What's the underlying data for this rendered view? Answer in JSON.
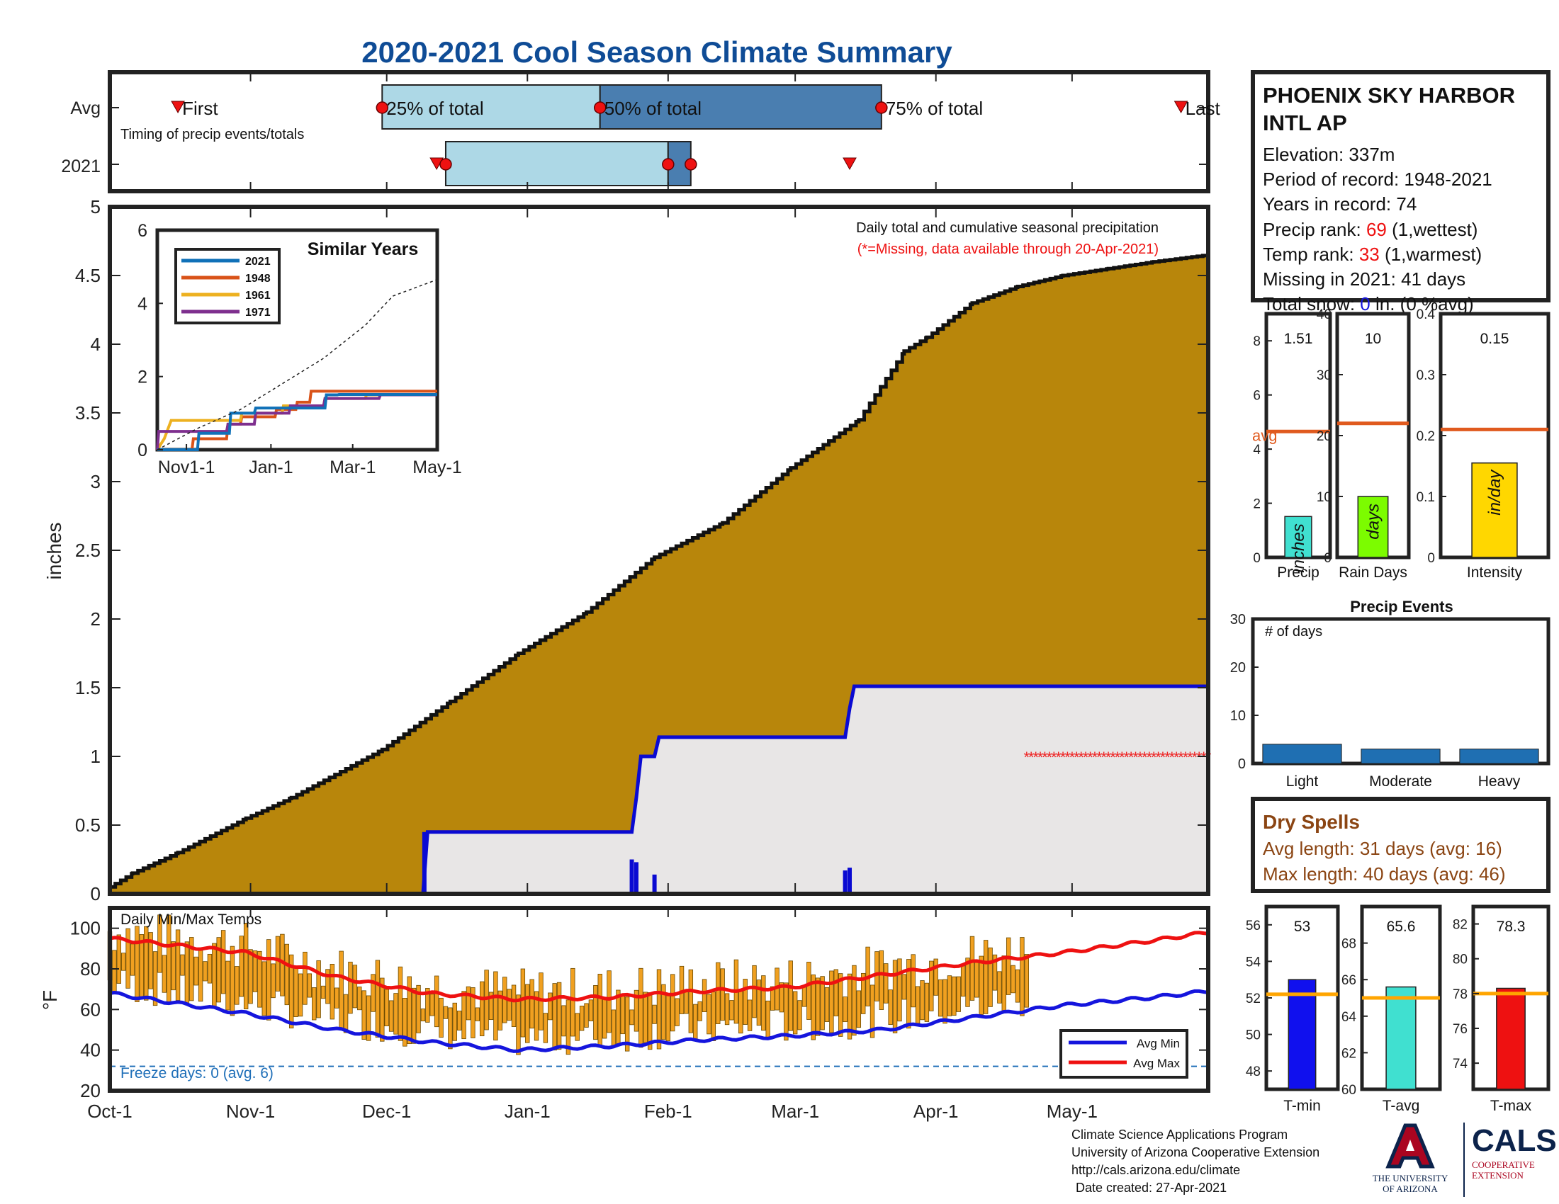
{
  "title": "2020-2021 Cool Season Climate Summary",
  "colors": {
    "title": "#0f4c96",
    "precip_fill": "#b8860b",
    "normal_fill": "#e8e6e6",
    "normal_line": "#0a0ad2",
    "avg_line": "#e05a1e",
    "temp_bar": "#f0a020",
    "avg_max": "#ee1111",
    "avg_min": "#1515dd",
    "freeze": "#1f6fb8",
    "missing": "#ee2222",
    "light_blue": "#add8e6",
    "steel_blue": "#4a7eb0",
    "dry_brown": "#8b4513",
    "event_bar": "#1f6fb2"
  },
  "station": {
    "name_line1": "PHOENIX SKY HARBOR",
    "name_line2": "INTL AP",
    "elevation": "Elevation: 337m",
    "period": "Period of record: 1948-2021",
    "years": "Years in record: 74",
    "precip_rank_label": "Precip rank: ",
    "precip_rank_value": "69",
    "precip_rank_suffix": " (1,wettest)",
    "temp_rank_label": "Temp rank: ",
    "temp_rank_value": "33",
    "temp_rank_suffix": " (1,warmest)",
    "missing": "Missing in 2021: 41 days",
    "snow_label": "Total snow: ",
    "snow_value": "0",
    "snow_suffix": " in. (0 %avg)"
  },
  "timing_panel": {
    "row_avg": "Avg",
    "row_year": "2021",
    "first_label": "First",
    "last_label": "Last",
    "p25_label": "25% of total",
    "p50_label": "50% of total",
    "p75_label": "75% of total",
    "subtitle": "Timing of precip events/totals",
    "avg_first": 15,
    "avg_p25": 60,
    "avg_p50": 108,
    "avg_p75": 170,
    "avg_last": 236,
    "yr_first": 73,
    "yr_p25": 74,
    "yr_p50": 123,
    "yr_p75": 128,
    "yr_last": 163
  },
  "main_panel": {
    "ylabel": "inches",
    "note1": "Daily total and cumulative seasonal precipitation",
    "note2": "(*=Missing, data available through 20-Apr-2021)",
    "yticks": [
      "0",
      "0.5",
      "1",
      "1.5",
      "2",
      "2.5",
      "3",
      "3.5",
      "4",
      "4.5",
      "5"
    ],
    "xticks": [
      "Oct-1",
      "Nov-1",
      "Dec-1",
      "Jan-1",
      "Feb-1",
      "Mar-1",
      "Apr-1",
      "May-1"
    ]
  },
  "inset": {
    "title": "Similar Years",
    "legend": [
      "2021",
      "1948",
      "1961",
      "1971"
    ],
    "legend_colors": [
      "#1071b8",
      "#d95319",
      "#edb120",
      "#7e2f8e"
    ],
    "yticks": [
      "0",
      "2",
      "4",
      "6"
    ],
    "xticks": [
      "Nov1-1",
      "Jan-1",
      "Mar-1",
      "May-1"
    ]
  },
  "temp_panel": {
    "title": "Daily Min/Max Temps",
    "ylabel": "°F",
    "yticks": [
      "20",
      "40",
      "60",
      "80",
      "100"
    ],
    "freeze_text": "Freeze days: 0 (avg. 6)",
    "legend_min": "Avg Min",
    "legend_max": "Avg Max"
  },
  "totals_panels": [
    {
      "label": "Precip",
      "unit": "inches",
      "value_text": "1.51",
      "avg_text": "avg",
      "yticks": [
        "0",
        "2",
        "4",
        "6",
        "8"
      ]
    },
    {
      "label": "Rain Days",
      "unit": "days",
      "value_text": "10",
      "yticks": [
        "0",
        "10",
        "20",
        "30",
        "40"
      ]
    },
    {
      "label": "Intensity",
      "unit": "in/day",
      "value_text": "0.15",
      "yticks": [
        "0",
        "0.1",
        "0.2",
        "0.3",
        "0.4"
      ]
    }
  ],
  "events_panel": {
    "title": "Precip Events",
    "subtitle": "# of days",
    "categories": [
      "Light",
      "Moderate",
      "Heavy"
    ],
    "yticks": [
      "0",
      "10",
      "20",
      "30"
    ]
  },
  "dry_spells": {
    "title": "Dry Spells",
    "avg": "Avg length: 31 days (avg: 16)",
    "max": "Max length: 40 days (avg: 46)"
  },
  "temp_bars": [
    {
      "label": "T-min",
      "value_text": "53",
      "yticks": [
        "48",
        "50",
        "52",
        "54",
        "56"
      ]
    },
    {
      "label": "T-avg",
      "value_text": "65.6",
      "yticks": [
        "60",
        "62",
        "64",
        "66",
        "68"
      ]
    },
    {
      "label": "T-max",
      "value_text": "78.3",
      "yticks": [
        "74",
        "76",
        "78",
        "80",
        "82"
      ]
    }
  ],
  "footer": {
    "line1": "Climate Science Applications Program",
    "line2": "University of Arizona Cooperative Extension",
    "line3": "http://cals.arizona.edu/climate",
    "line4": "Date created: 27-Apr-2021"
  },
  "logos": {
    "ua_line1": "THE UNIVERSITY",
    "ua_line2": "OF ARIZONA",
    "cals": "CALS",
    "cals_line1": "COOPERATIVE",
    "cals_line2": "EXTENSION"
  },
  "chart_data": [
    {
      "type": "area",
      "title": "Daily total and cumulative seasonal precipitation",
      "ylabel": "inches",
      "x_unit": "day of season (Oct-1 = 0)",
      "ylim": [
        0,
        5
      ],
      "xlim": [
        0,
        242
      ],
      "series": [
        {
          "name": "average cumulative",
          "x": [
            0,
            5,
            15,
            30,
            40,
            60,
            75,
            90,
            105,
            120,
            135,
            150,
            165,
            175,
            180,
            190,
            200,
            210,
            220,
            230,
            242
          ],
          "values": [
            0.05,
            0.15,
            0.3,
            0.55,
            0.7,
            1.05,
            1.4,
            1.75,
            2.05,
            2.45,
            2.7,
            3.1,
            3.45,
            3.95,
            4.05,
            4.3,
            4.42,
            4.5,
            4.55,
            4.6,
            4.65
          ]
        },
        {
          "name": "2021 cumulative",
          "x": [
            0,
            69,
            70,
            115,
            116,
            117,
            120,
            121,
            162,
            163,
            164,
            242
          ],
          "values": [
            0,
            0,
            0.45,
            0.45,
            0.7,
            1.0,
            1.0,
            1.14,
            1.14,
            1.35,
            1.51,
            1.51
          ]
        },
        {
          "name": "2021 daily",
          "x": [
            115,
            116,
            120,
            162,
            163
          ],
          "values": [
            0.25,
            0.23,
            0.14,
            0.17,
            0.19
          ]
        }
      ],
      "missing_x_range": [
        202,
        242
      ],
      "missing_y": 1.0
    },
    {
      "type": "line",
      "title": "Similar Years",
      "x_unit": "day of season",
      "ylim": [
        0,
        6
      ],
      "series": [
        {
          "name": "2021",
          "x": [
            0,
            29,
            30,
            52,
            53,
            70,
            71,
            121,
            122,
            130,
            131,
            202
          ],
          "values": [
            0,
            0,
            0.45,
            0.45,
            1.0,
            1.0,
            1.14,
            1.14,
            1.5,
            1.5,
            1.51,
            1.51
          ]
        },
        {
          "name": "1948",
          "x": [
            0,
            25,
            26,
            50,
            51,
            60,
            61,
            85,
            86,
            100,
            101,
            110,
            111,
            202
          ],
          "values": [
            0,
            0,
            0.3,
            0.3,
            0.7,
            0.7,
            0.9,
            0.9,
            1.1,
            1.1,
            1.3,
            1.3,
            1.6,
            1.6
          ]
        },
        {
          "name": "1961",
          "x": [
            0,
            5,
            10,
            60,
            61,
            90,
            91,
            120,
            121,
            150,
            151,
            202
          ],
          "values": [
            0,
            0.3,
            0.8,
            0.8,
            1.0,
            1.0,
            1.2,
            1.2,
            1.4,
            1.4,
            1.5,
            1.5
          ]
        },
        {
          "name": "1971",
          "x": [
            0,
            1,
            50,
            51,
            70,
            71,
            95,
            96,
            120,
            121,
            160,
            161,
            202
          ],
          "values": [
            0,
            0.5,
            0.5,
            0.7,
            0.7,
            1.0,
            1.0,
            1.2,
            1.2,
            1.4,
            1.4,
            1.5,
            1.5
          ]
        },
        {
          "name": "avg",
          "x": [
            0,
            30,
            60,
            90,
            120,
            150,
            170,
            202
          ],
          "values": [
            0,
            0.6,
            1.1,
            1.8,
            2.5,
            3.4,
            4.2,
            4.65
          ]
        }
      ]
    },
    {
      "type": "bar",
      "title": "Daily Min/Max Temps",
      "ylabel": "°F",
      "ylim": [
        20,
        110
      ],
      "avg_max": {
        "x": [
          0,
          30,
          50,
          70,
          90,
          110,
          130,
          150,
          170,
          190,
          210,
          230,
          242
        ],
        "values": [
          95,
          88,
          76,
          68,
          65,
          66,
          69,
          71,
          77,
          83,
          88,
          94,
          98
        ]
      },
      "avg_min": {
        "x": [
          0,
          30,
          50,
          70,
          90,
          110,
          130,
          150,
          170,
          190,
          210,
          230,
          242
        ],
        "values": [
          68,
          58,
          50,
          44,
          40,
          42,
          45,
          47,
          50,
          56,
          62,
          66,
          69
        ]
      },
      "freeze_line": 32,
      "obs_x_range": [
        0,
        202
      ]
    },
    {
      "type": "bar",
      "categories": [
        "Precip"
      ],
      "values": [
        1.51
      ],
      "avg": 4.65,
      "ylim": [
        0,
        9
      ]
    },
    {
      "type": "bar",
      "categories": [
        "Rain Days"
      ],
      "values": [
        10
      ],
      "avg": 22,
      "ylim": [
        0,
        40
      ]
    },
    {
      "type": "bar",
      "categories": [
        "Intensity"
      ],
      "values": [
        0.155
      ],
      "avg": 0.21,
      "ylim": [
        0,
        0.4
      ]
    },
    {
      "type": "bar",
      "title": "Precip Events",
      "categories": [
        "Light",
        "Moderate",
        "Heavy"
      ],
      "values": [
        4,
        3,
        3
      ],
      "ylim": [
        0,
        30
      ]
    },
    {
      "type": "bar",
      "categories": [
        "T-min"
      ],
      "values": [
        53
      ],
      "avg": 52.2,
      "ylim": [
        47,
        57
      ]
    },
    {
      "type": "bar",
      "categories": [
        "T-avg"
      ],
      "values": [
        65.6
      ],
      "avg": 65,
      "ylim": [
        60,
        70
      ]
    },
    {
      "type": "bar",
      "categories": [
        "T-max"
      ],
      "values": [
        78.3
      ],
      "avg": 78,
      "ylim": [
        72.5,
        83
      ]
    }
  ]
}
